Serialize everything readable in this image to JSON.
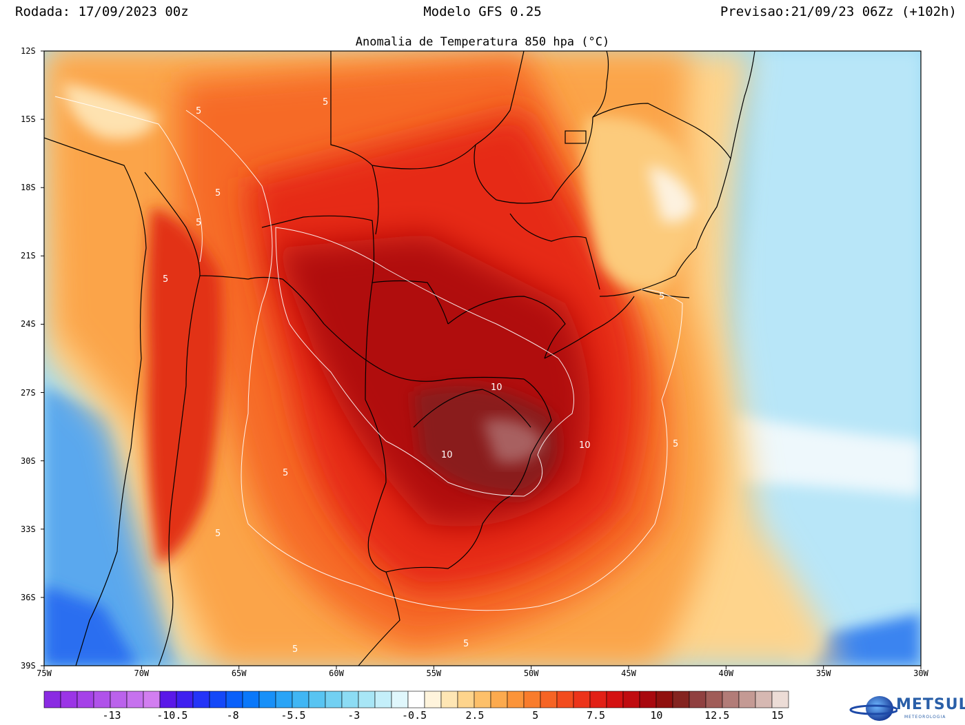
{
  "header": {
    "run": "Rodada: 17/09/2023 00z",
    "model": "Modelo GFS 0.25",
    "forecast": "Previsao:21/09/23 06Zz (+102h)"
  },
  "map": {
    "title": "Anomalia de Temperatura 850 hpa (°C)",
    "lat_labels": [
      "12S",
      "15S",
      "18S",
      "21S",
      "24S",
      "27S",
      "30S",
      "33S",
      "36S",
      "39S"
    ],
    "lon_labels": [
      "75W",
      "70W",
      "65W",
      "60W",
      "55W",
      "50W",
      "45W",
      "40W",
      "35W",
      "30W"
    ],
    "extent": {
      "lon_min": -75,
      "lon_max": -30,
      "lat_min": -39,
      "lat_max": -12
    },
    "contour_labels": [
      "5",
      "5",
      "5",
      "5",
      "5",
      "5",
      "5",
      "5",
      "5",
      "5",
      "10",
      "10",
      "10",
      "5"
    ]
  },
  "colorbar": {
    "labels": [
      "-13",
      "-10.5",
      "-8",
      "-5.5",
      "-3",
      "-0.5",
      "2.5",
      "5",
      "7.5",
      "10",
      "12.5",
      "15"
    ],
    "colors": [
      "#8a2be2",
      "#9b35e6",
      "#a542e8",
      "#b052ea",
      "#bb62ec",
      "#c672ee",
      "#d27ef0",
      "#5a18e8",
      "#3f20f0",
      "#2434f8",
      "#1448f8",
      "#0a60fa",
      "#0a78fa",
      "#1890f8",
      "#2aa4f6",
      "#40b6f4",
      "#58c4f2",
      "#72d0f2",
      "#8cdcf4",
      "#a8e6f6",
      "#c4effa",
      "#e0f7fc",
      "#ffffff",
      "#fff4dc",
      "#fee6b4",
      "#fed48c",
      "#fdc06a",
      "#fcaa4e",
      "#fb943a",
      "#f97c2c",
      "#f66424",
      "#f24c1e",
      "#ec341a",
      "#e22016",
      "#d41212",
      "#c00c10",
      "#a8080e",
      "#90100e",
      "#842420",
      "#904040",
      "#a05c58",
      "#b27c78",
      "#c49a94",
      "#d6b8b2",
      "#ecdcd6"
    ]
  },
  "logo": {
    "name": "METSUL",
    "subtitle": "METEOROLOGIA"
  }
}
